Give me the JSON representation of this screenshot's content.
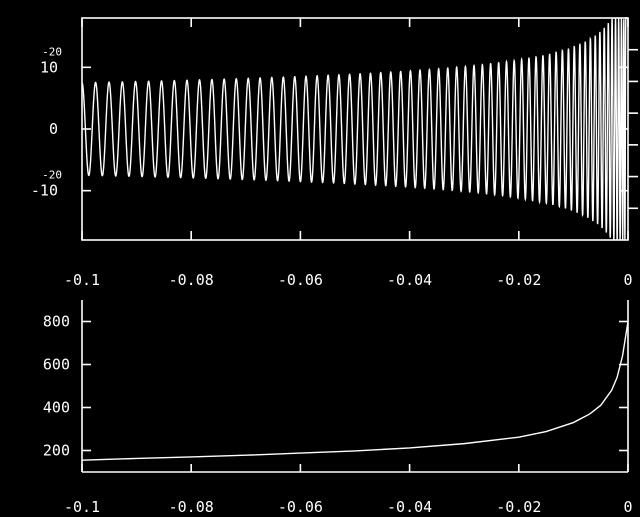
{
  "chart_data": [
    {
      "type": "line",
      "x_range": [
        -0.1,
        0
      ],
      "x_ticks": [
        -0.1,
        -0.08,
        -0.06,
        -0.04,
        -0.02,
        0
      ],
      "x_tick_labels": [
        "-0.1",
        "-0.08",
        "-0.06",
        "-0.04",
        "-0.02",
        "0"
      ],
      "y_range": [
        -1.8e-20,
        1.8e-20
      ],
      "y_ticks": [
        1e-20,
        0,
        -1e-20
      ],
      "y_tick_labels": [
        {
          "mantissa": "10",
          "exponent": "-20"
        },
        {
          "mantissa": "0",
          "exponent": ""
        },
        {
          "mantissa": "-10",
          "exponent": "-20"
        }
      ],
      "series": [
        {
          "x_start": -0.1,
          "x_end": 0,
          "amplitude_start": 7.5e-21,
          "amplitude_end": 1.8e-20,
          "frequency_start": 160,
          "frequency_end": 800,
          "cycles_visible": 62,
          "color": "#ffffff"
        }
      ],
      "grid": false
    },
    {
      "type": "line",
      "x_range": [
        -0.1,
        0
      ],
      "x_ticks": [
        -0.1,
        -0.08,
        -0.06,
        -0.04,
        -0.02,
        0
      ],
      "x_tick_labels": [
        "-0.1",
        "-0.08",
        "-0.06",
        "-0.04",
        "-0.02",
        "0"
      ],
      "y_range": [
        100,
        900
      ],
      "y_ticks": [
        200,
        400,
        600,
        800
      ],
      "y_tick_labels": [
        "200",
        "400",
        "600",
        "800"
      ],
      "series": [
        {
          "x": [
            -0.1,
            -0.09,
            -0.08,
            -0.07,
            -0.06,
            -0.05,
            -0.04,
            -0.03,
            -0.02,
            -0.015,
            -0.01,
            -0.007,
            -0.005,
            -0.003,
            -0.002,
            -0.001,
            -0.0005,
            0
          ],
          "y": [
            155,
            163,
            170,
            178,
            188,
            198,
            212,
            232,
            262,
            288,
            330,
            370,
            410,
            480,
            540,
            640,
            720,
            800
          ],
          "color": "#ffffff"
        }
      ],
      "grid": false
    }
  ]
}
